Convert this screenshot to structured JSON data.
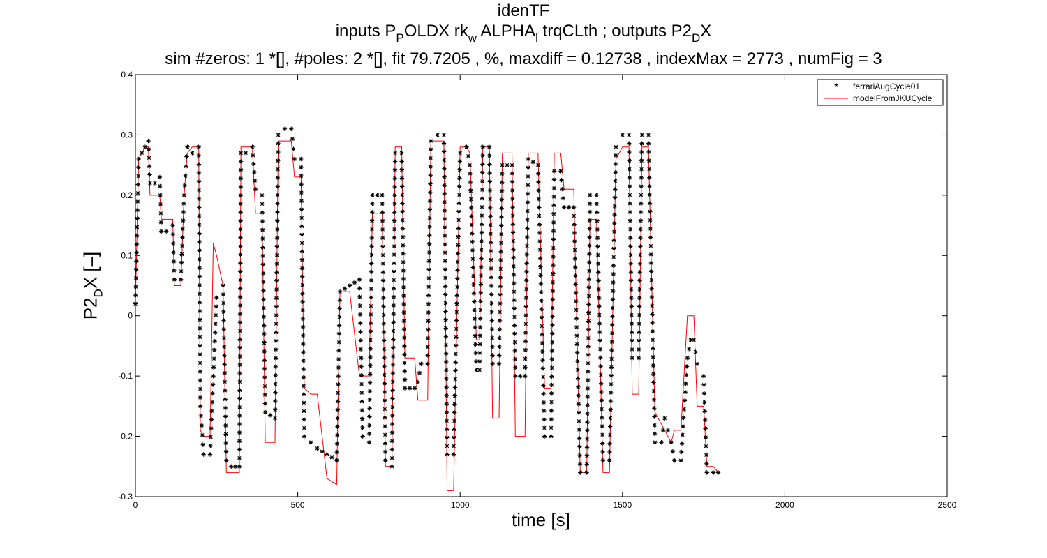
{
  "title": {
    "line1": "idenTF",
    "line2": {
      "pre": "inputs P",
      "s1": "P",
      "mid1": "OLDX rk",
      "s2": "w",
      "mid2": " ALPHA",
      "s3": "l",
      "post": " trqCLth ; outputs P2",
      "s4": "D",
      "end": "X"
    },
    "line3": "sim #zeros:  1 *[], #poles:  2 *[], fit  79.7205 , %, maxdiff =  0.12738 , indexMax =  2773 , numFig =  3"
  },
  "axes": {
    "ylabel_pre": "P2",
    "ylabel_sub": "D",
    "ylabel_post": "X [–]",
    "xlabel": "time [s]"
  },
  "colors": {
    "measured": "#000000",
    "model": "#ff0000",
    "axis": "#000000"
  },
  "chart_data": {
    "type": "line",
    "xlim": [
      0,
      2500
    ],
    "ylim": [
      -0.3,
      0.4
    ],
    "xticks": [
      0,
      500,
      1000,
      1500,
      2000,
      2500
    ],
    "yticks": [
      -0.3,
      -0.2,
      -0.1,
      0,
      0.1,
      0.2,
      0.3,
      0.4
    ],
    "grid": false,
    "legend_placement": "top-right",
    "series": [
      {
        "name": "ferrariAugCycle01",
        "marker": "*",
        "points": [
          [
            0,
            0.02
          ],
          [
            10,
            0.26
          ],
          [
            20,
            0.27
          ],
          [
            30,
            0.28
          ],
          [
            40,
            0.29
          ],
          [
            45,
            0.22
          ],
          [
            60,
            0.22
          ],
          [
            75,
            0.23
          ],
          [
            80,
            0.14
          ],
          [
            95,
            0.14
          ],
          [
            115,
            0.15
          ],
          [
            120,
            0.06
          ],
          [
            140,
            0.06
          ],
          [
            150,
            0.2
          ],
          [
            160,
            0.28
          ],
          [
            175,
            0.27
          ],
          [
            195,
            0.28
          ],
          [
            200,
            -0.15
          ],
          [
            210,
            -0.23
          ],
          [
            230,
            -0.23
          ],
          [
            240,
            -0.1
          ],
          [
            250,
            0.03
          ],
          [
            270,
            0.05
          ],
          [
            280,
            -0.24
          ],
          [
            295,
            -0.25
          ],
          [
            320,
            -0.25
          ],
          [
            325,
            0.27
          ],
          [
            340,
            0.27
          ],
          [
            360,
            0.28
          ],
          [
            370,
            0.21
          ],
          [
            390,
            0.2
          ],
          [
            400,
            -0.16
          ],
          [
            430,
            -0.17
          ],
          [
            440,
            0.3
          ],
          [
            460,
            0.31
          ],
          [
            480,
            0.31
          ],
          [
            490,
            0.26
          ],
          [
            510,
            0.26
          ],
          [
            520,
            -0.2
          ],
          [
            540,
            -0.21
          ],
          [
            560,
            -0.22
          ],
          [
            590,
            -0.23
          ],
          [
            620,
            -0.24
          ],
          [
            630,
            0.04
          ],
          [
            660,
            0.05
          ],
          [
            690,
            0.06
          ],
          [
            700,
            -0.2
          ],
          [
            720,
            -0.21
          ],
          [
            730,
            0.2
          ],
          [
            760,
            0.2
          ],
          [
            770,
            -0.24
          ],
          [
            790,
            -0.25
          ],
          [
            800,
            0.27
          ],
          [
            820,
            0.27
          ],
          [
            830,
            -0.12
          ],
          [
            860,
            -0.12
          ],
          [
            870,
            -0.11
          ],
          [
            880,
            -0.08
          ],
          [
            900,
            -0.08
          ],
          [
            910,
            0.29
          ],
          [
            930,
            0.3
          ],
          [
            950,
            0.3
          ],
          [
            960,
            -0.23
          ],
          [
            980,
            -0.23
          ],
          [
            1000,
            0.27
          ],
          [
            1020,
            0.28
          ],
          [
            1030,
            0.25
          ],
          [
            1050,
            -0.09
          ],
          [
            1060,
            -0.09
          ],
          [
            1070,
            0.28
          ],
          [
            1090,
            0.28
          ],
          [
            1100,
            -0.08
          ],
          [
            1120,
            -0.08
          ],
          [
            1130,
            0.25
          ],
          [
            1160,
            0.25
          ],
          [
            1170,
            -0.1
          ],
          [
            1200,
            -0.1
          ],
          [
            1210,
            0.26
          ],
          [
            1240,
            0.25
          ],
          [
            1260,
            -0.2
          ],
          [
            1280,
            -0.2
          ],
          [
            1290,
            0.24
          ],
          [
            1310,
            0.24
          ],
          [
            1320,
            0.18
          ],
          [
            1350,
            0.18
          ],
          [
            1370,
            -0.26
          ],
          [
            1390,
            -0.26
          ],
          [
            1400,
            0.2
          ],
          [
            1420,
            0.2
          ],
          [
            1440,
            -0.24
          ],
          [
            1460,
            -0.24
          ],
          [
            1480,
            0.28
          ],
          [
            1500,
            0.3
          ],
          [
            1520,
            0.3
          ],
          [
            1530,
            -0.07
          ],
          [
            1550,
            -0.07
          ],
          [
            1560,
            0.3
          ],
          [
            1580,
            0.3
          ],
          [
            1600,
            -0.21
          ],
          [
            1620,
            -0.21
          ],
          [
            1630,
            -0.17
          ],
          [
            1650,
            -0.21
          ],
          [
            1660,
            -0.24
          ],
          [
            1680,
            -0.24
          ],
          [
            1700,
            -0.07
          ],
          [
            1710,
            -0.04
          ],
          [
            1720,
            -0.04
          ],
          [
            1730,
            -0.08
          ],
          [
            1750,
            -0.1
          ],
          [
            1760,
            -0.26
          ],
          [
            1780,
            -0.26
          ],
          [
            1795,
            -0.26
          ]
        ]
      },
      {
        "name": "modelFromJKUCycle",
        "marker": "none",
        "points": [
          [
            0,
            0.02
          ],
          [
            10,
            0.26
          ],
          [
            20,
            0.27
          ],
          [
            30,
            0.28
          ],
          [
            40,
            0.28
          ],
          [
            45,
            0.2
          ],
          [
            60,
            0.2
          ],
          [
            75,
            0.2
          ],
          [
            80,
            0.16
          ],
          [
            95,
            0.16
          ],
          [
            115,
            0.16
          ],
          [
            120,
            0.05
          ],
          [
            140,
            0.05
          ],
          [
            150,
            0.2
          ],
          [
            160,
            0.27
          ],
          [
            175,
            0.28
          ],
          [
            195,
            0.28
          ],
          [
            200,
            -0.19
          ],
          [
            210,
            -0.2
          ],
          [
            230,
            -0.2
          ],
          [
            240,
            0.12
          ],
          [
            250,
            0.1
          ],
          [
            270,
            0.05
          ],
          [
            280,
            -0.26
          ],
          [
            295,
            -0.26
          ],
          [
            320,
            -0.26
          ],
          [
            325,
            0.28
          ],
          [
            340,
            0.28
          ],
          [
            360,
            0.28
          ],
          [
            370,
            0.17
          ],
          [
            390,
            0.17
          ],
          [
            400,
            -0.21
          ],
          [
            430,
            -0.21
          ],
          [
            440,
            0.29
          ],
          [
            460,
            0.29
          ],
          [
            480,
            0.29
          ],
          [
            490,
            0.23
          ],
          [
            510,
            0.23
          ],
          [
            520,
            -0.12
          ],
          [
            540,
            -0.13
          ],
          [
            560,
            -0.13
          ],
          [
            590,
            -0.27
          ],
          [
            620,
            -0.28
          ],
          [
            630,
            0.04
          ],
          [
            660,
            0.04
          ],
          [
            690,
            -0.1
          ],
          [
            700,
            -0.1
          ],
          [
            720,
            -0.1
          ],
          [
            730,
            0.17
          ],
          [
            760,
            0.17
          ],
          [
            770,
            -0.25
          ],
          [
            790,
            -0.25
          ],
          [
            800,
            0.28
          ],
          [
            820,
            0.28
          ],
          [
            830,
            -0.07
          ],
          [
            860,
            -0.07
          ],
          [
            870,
            -0.14
          ],
          [
            880,
            -0.14
          ],
          [
            900,
            -0.14
          ],
          [
            910,
            0.29
          ],
          [
            930,
            0.29
          ],
          [
            950,
            0.29
          ],
          [
            960,
            -0.29
          ],
          [
            980,
            -0.29
          ],
          [
            1000,
            0.28
          ],
          [
            1020,
            0.28
          ],
          [
            1030,
            0.27
          ],
          [
            1050,
            -0.04
          ],
          [
            1060,
            -0.04
          ],
          [
            1070,
            0.28
          ],
          [
            1090,
            0.28
          ],
          [
            1100,
            -0.17
          ],
          [
            1120,
            -0.17
          ],
          [
            1130,
            0.27
          ],
          [
            1160,
            0.27
          ],
          [
            1170,
            -0.2
          ],
          [
            1200,
            -0.2
          ],
          [
            1210,
            0.27
          ],
          [
            1240,
            0.27
          ],
          [
            1260,
            -0.12
          ],
          [
            1280,
            -0.12
          ],
          [
            1290,
            0.27
          ],
          [
            1310,
            0.27
          ],
          [
            1320,
            0.21
          ],
          [
            1350,
            0.21
          ],
          [
            1370,
            -0.26
          ],
          [
            1390,
            -0.26
          ],
          [
            1400,
            0.16
          ],
          [
            1420,
            0.16
          ],
          [
            1440,
            -0.26
          ],
          [
            1460,
            -0.26
          ],
          [
            1480,
            0.26
          ],
          [
            1500,
            0.28
          ],
          [
            1520,
            0.28
          ],
          [
            1530,
            -0.13
          ],
          [
            1550,
            -0.13
          ],
          [
            1560,
            0.28
          ],
          [
            1580,
            0.28
          ],
          [
            1600,
            -0.16
          ],
          [
            1620,
            -0.18
          ],
          [
            1630,
            -0.19
          ],
          [
            1650,
            -0.21
          ],
          [
            1660,
            -0.19
          ],
          [
            1680,
            -0.19
          ],
          [
            1700,
            0.0
          ],
          [
            1710,
            0.0
          ],
          [
            1720,
            0.0
          ],
          [
            1730,
            -0.15
          ],
          [
            1750,
            -0.15
          ],
          [
            1760,
            -0.25
          ],
          [
            1780,
            -0.25
          ],
          [
            1795,
            -0.26
          ]
        ]
      }
    ]
  }
}
